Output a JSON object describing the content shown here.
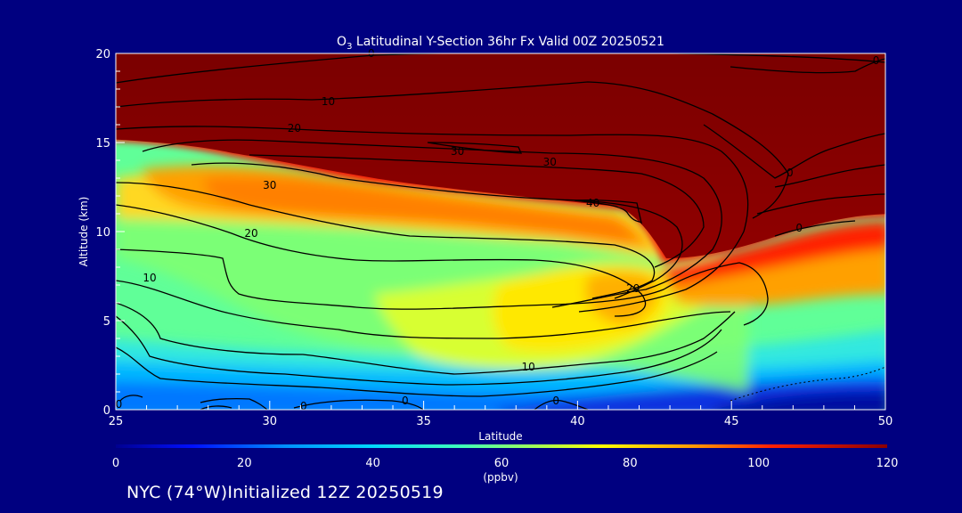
{
  "chart_data": {
    "type": "heatmap",
    "title_species": "O",
    "title_subscript": "3",
    "title_rest": " Latitudinal Y-Section 36hr  Fx Valid 00Z 20250521",
    "xlabel": "Latitude",
    "ylabel": "Altitude (km)",
    "xlim": [
      25,
      50
    ],
    "ylim": [
      0,
      20
    ],
    "xticks": [
      25,
      30,
      35,
      40,
      45,
      50
    ],
    "yticks": [
      0,
      5,
      10,
      15,
      20
    ],
    "colorbar": {
      "min": 0,
      "max": 120,
      "ticks": [
        0,
        20,
        40,
        60,
        80,
        100,
        120
      ],
      "unit": "(ppbv)"
    },
    "contour_levels": [
      0,
      10,
      20,
      30,
      40
    ],
    "contour_labels": [
      {
        "text": "0",
        "x": 33.3,
        "y": 20.0
      },
      {
        "text": "10",
        "x": 31.9,
        "y": 17.3
      },
      {
        "text": "20",
        "x": 30.8,
        "y": 15.8
      },
      {
        "text": "30",
        "x": 36.1,
        "y": 14.5
      },
      {
        "text": "30",
        "x": 39.1,
        "y": 13.9
      },
      {
        "text": "30",
        "x": 30.0,
        "y": 12.6
      },
      {
        "text": "40",
        "x": 40.5,
        "y": 11.6
      },
      {
        "text": "20",
        "x": 29.4,
        "y": 9.9
      },
      {
        "text": "10",
        "x": 26.1,
        "y": 7.4
      },
      {
        "text": "20",
        "x": 41.8,
        "y": 6.8
      },
      {
        "text": "10",
        "x": 38.4,
        "y": 2.4
      },
      {
        "text": "0",
        "x": 31.1,
        "y": 0.2
      },
      {
        "text": "0",
        "x": 34.4,
        "y": 0.5
      },
      {
        "text": "0",
        "x": 39.3,
        "y": 0.5
      },
      {
        "text": "0",
        "x": 25.1,
        "y": 0.3
      },
      {
        "text": "0",
        "x": 49.7,
        "y": 19.6
      },
      {
        "text": "0",
        "x": 46.9,
        "y": 13.3
      },
      {
        "text": "0",
        "x": 47.2,
        "y": 10.2
      }
    ]
  },
  "footer": "NYC (74°W)Initialized 12Z 20250519"
}
